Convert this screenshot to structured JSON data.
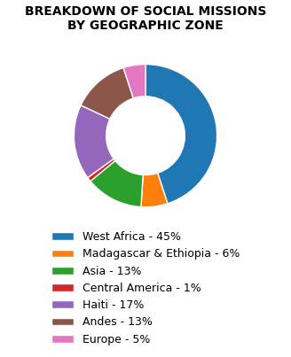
{
  "chart_data": {
    "type": "pie",
    "title": "BREAKDOWN OF SOCIAL MISSIONS\nBY GEOGRAPHIC ZONE",
    "categories": [
      "West Africa - 45%",
      "Madagascar & Ethiopia - 6%",
      "Asia - 13%",
      "Central America - 1%",
      "Haiti - 17%",
      "Andes - 13%",
      "Europe - 5%"
    ],
    "values": [
      45,
      6,
      13,
      1,
      17,
      13,
      5
    ],
    "legend": "lower center"
  }
}
